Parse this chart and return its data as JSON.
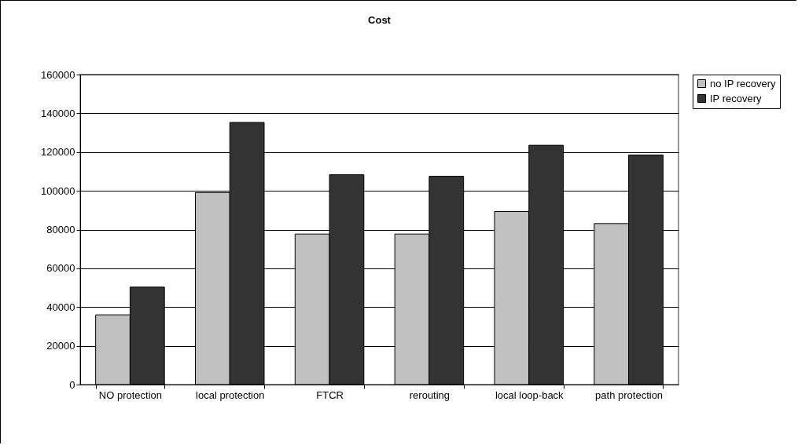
{
  "chart_data": {
    "type": "bar",
    "title": "Cost",
    "categories": [
      "NO protection",
      "local protection",
      "FTCR",
      "rerouting",
      "local loop-back",
      "path protection"
    ],
    "series": [
      {
        "name": "no IP recovery",
        "color": "#c0c0c0",
        "values": [
          36000,
          99100,
          77700,
          77700,
          89300,
          83100
        ]
      },
      {
        "name": "IP recovery",
        "color": "#333333",
        "values": [
          50300,
          135300,
          108300,
          107500,
          123500,
          118500
        ]
      }
    ],
    "ylim": [
      0,
      160000
    ],
    "yticks": [
      0,
      20000,
      40000,
      60000,
      80000,
      100000,
      120000,
      140000,
      160000
    ],
    "grid": "y",
    "legend": "right"
  }
}
